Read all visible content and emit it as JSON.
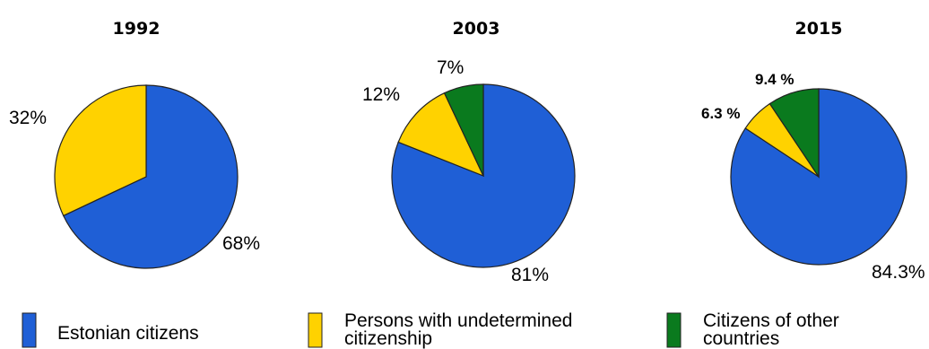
{
  "chart_data": [
    {
      "type": "pie",
      "title": "1992",
      "categories": [
        "Estonian citizens",
        "Persons with undetermined citizenship"
      ],
      "values": [
        68,
        32
      ],
      "labels": [
        "68%",
        "32%"
      ]
    },
    {
      "type": "pie",
      "title": "2003",
      "categories": [
        "Estonian citizens",
        "Persons with undetermined citizenship",
        "Citizens of other countries"
      ],
      "values": [
        81,
        12,
        7
      ],
      "labels": [
        "81%",
        "12%",
        "7%"
      ]
    },
    {
      "type": "pie",
      "title": "2015",
      "categories": [
        "Estonian citizens",
        "Persons with undetermined citizenship",
        "Citizens of other countries"
      ],
      "values": [
        84.3,
        6.3,
        9.4
      ],
      "labels": [
        "84.3%",
        "6.3 %",
        "9.4 %"
      ]
    }
  ],
  "legend": [
    {
      "name": "Estonian citizens",
      "lines": [
        "Estonian citizens"
      ],
      "color": "#1f5fd6"
    },
    {
      "name": "Persons with undetermined citizenship",
      "lines": [
        "Persons with undetermined",
        "citizenship"
      ],
      "color": "#ffd200"
    },
    {
      "name": "Citizens of other countries",
      "lines": [
        "Citizens of other",
        "countries"
      ],
      "color": "#0a7a1e"
    }
  ],
  "colors": {
    "Estonian citizens": "#1f5fd6",
    "Persons with undetermined citizenship": "#ffd200",
    "Citizens of other countries": "#0a7a1e"
  }
}
